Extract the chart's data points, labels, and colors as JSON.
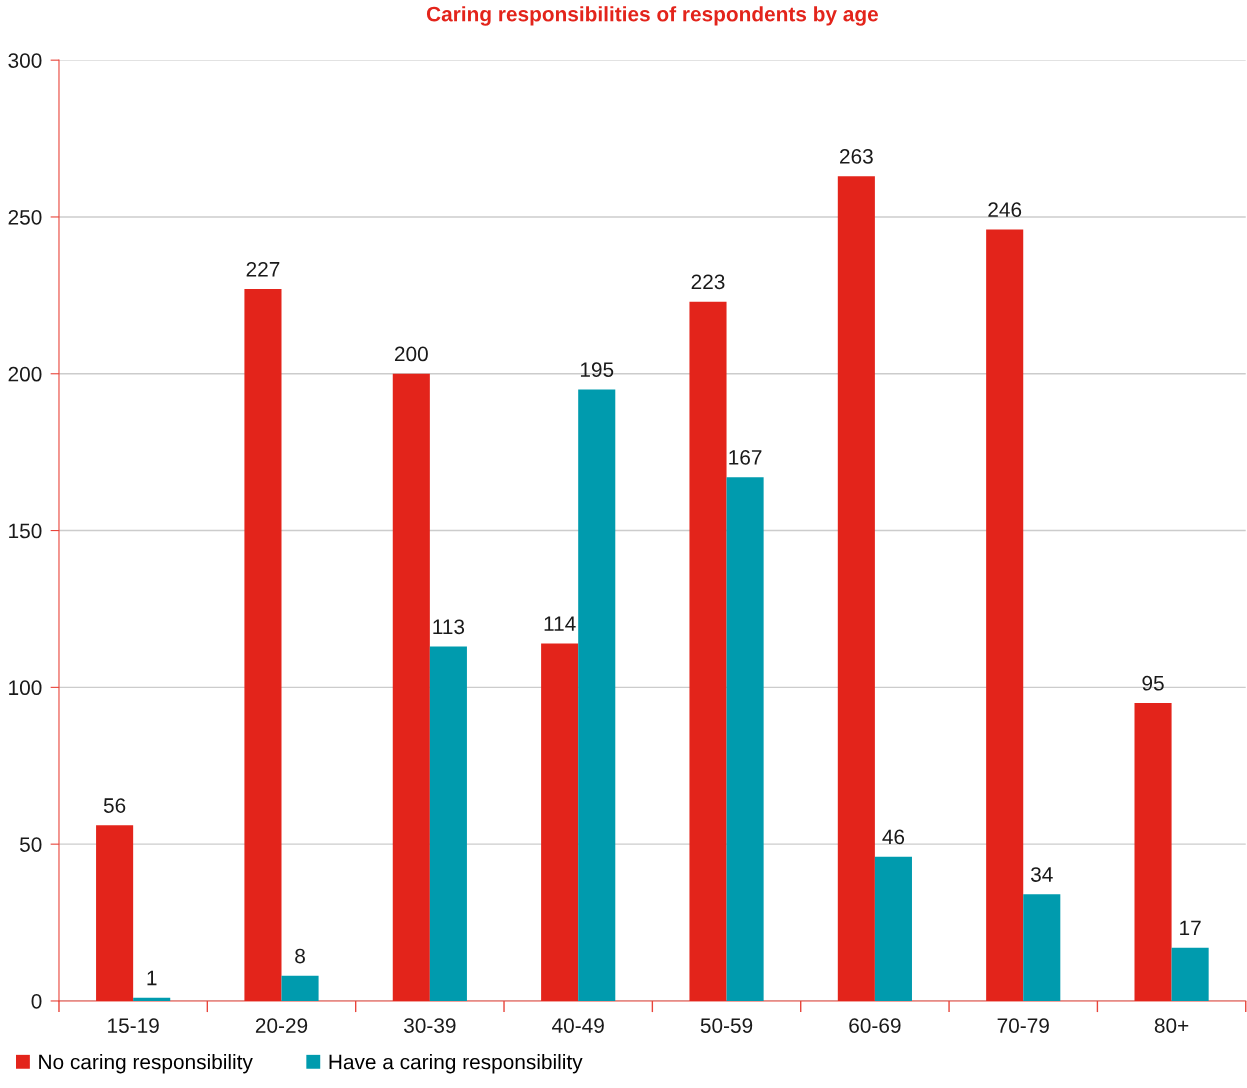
{
  "chart_data": {
    "type": "bar",
    "title": "Caring responsibilities of respondents by age",
    "categories": [
      "15-19",
      "20-29",
      "30-39",
      "40-49",
      "50-59",
      "60-69",
      "70-79",
      "80+"
    ],
    "series": [
      {
        "name": "No caring responsibility",
        "color": "#e3241b",
        "values": [
          56,
          227,
          200,
          114,
          223,
          263,
          246,
          95
        ]
      },
      {
        "name": "Have a caring responsibility",
        "color": "#009bae",
        "values": [
          1,
          8,
          113,
          195,
          167,
          46,
          34,
          17
        ]
      }
    ],
    "ylim": [
      0,
      300
    ],
    "yticks": [
      0,
      50,
      100,
      150,
      200,
      250,
      300
    ],
    "grid": "y",
    "legend": "bottom left",
    "data_labels": true
  }
}
